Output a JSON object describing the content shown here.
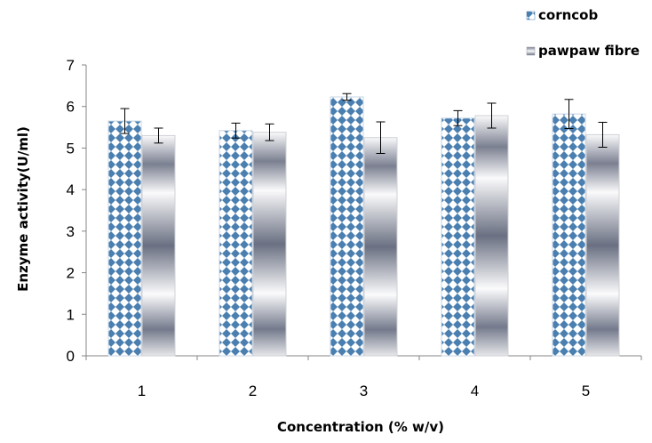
{
  "chart_data": {
    "type": "bar",
    "title": "",
    "xlabel": "Concentration (% w/v)",
    "ylabel": "Enzyme activity(U/ml)",
    "categories": [
      "1",
      "2",
      "3",
      "4",
      "5"
    ],
    "ylim": [
      0,
      7
    ],
    "yticks": [
      "0",
      "1",
      "2",
      "3",
      "4",
      "5",
      "6",
      "7"
    ],
    "grid": false,
    "legend_position": "top-right",
    "series": [
      {
        "name": "corncob",
        "values": [
          5.65,
          5.42,
          6.23,
          5.72,
          5.82
        ],
        "errors": [
          0.3,
          0.18,
          0.08,
          0.18,
          0.35
        ],
        "pattern": "diamond-checker",
        "color": "#4a7fb0"
      },
      {
        "name": "pawpaw fibre",
        "values": [
          5.3,
          5.38,
          5.25,
          5.78,
          5.32
        ],
        "errors": [
          0.18,
          0.2,
          0.38,
          0.3,
          0.3
        ],
        "pattern": "horizontal-gradient",
        "color": "#6a7080"
      }
    ]
  }
}
